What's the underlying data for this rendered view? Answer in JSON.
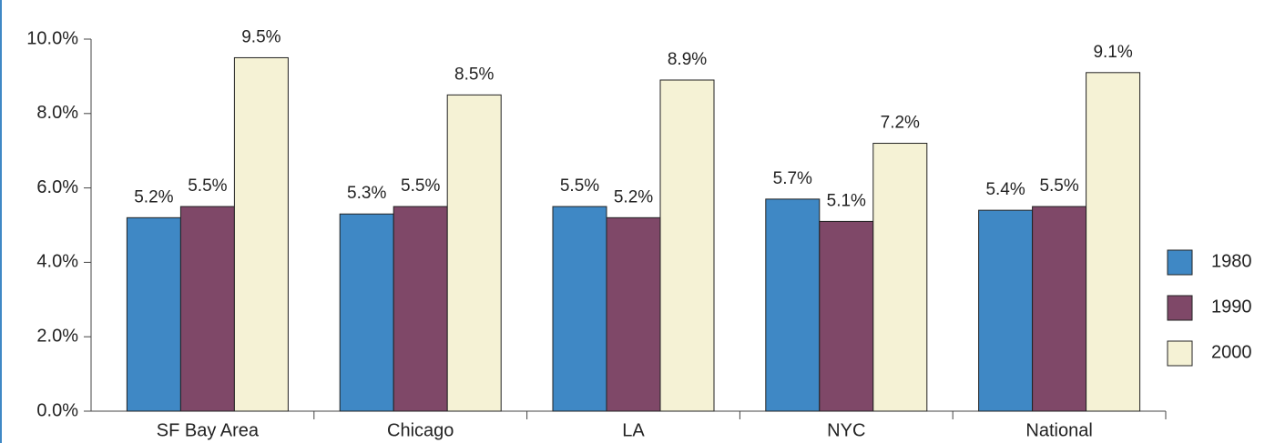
{
  "chart_data": {
    "type": "bar",
    "categories": [
      "SF Bay Area",
      "Chicago",
      "LA",
      "NYC",
      "National"
    ],
    "series": [
      {
        "name": "1980",
        "color": "#3f88c5",
        "values": [
          5.2,
          5.3,
          5.5,
          5.7,
          5.4
        ],
        "value_labels": [
          "5.2%",
          "5.3%",
          "5.5%",
          "5.7%",
          "5.4%"
        ]
      },
      {
        "name": "1990",
        "color": "#7f4868",
        "values": [
          5.5,
          5.5,
          5.2,
          5.1,
          5.5
        ],
        "value_labels": [
          "5.5%",
          "5.5%",
          "5.2%",
          "5.1%",
          "5.5%"
        ]
      },
      {
        "name": "2000",
        "color": "#f5f2d5",
        "values": [
          9.5,
          8.5,
          8.9,
          7.2,
          9.1
        ],
        "value_labels": [
          "9.5%",
          "8.5%",
          "8.9%",
          "7.2%",
          "9.1%"
        ]
      }
    ],
    "ylim": [
      0,
      10
    ],
    "yticks": [
      {
        "value": 0,
        "label": "0.0%"
      },
      {
        "value": 2,
        "label": "2.0%"
      },
      {
        "value": 4,
        "label": "4.0%"
      },
      {
        "value": 6,
        "label": "6.0%"
      },
      {
        "value": 8,
        "label": "8.0%"
      },
      {
        "value": 10,
        "label": "10.0%"
      }
    ],
    "legend": "right"
  }
}
